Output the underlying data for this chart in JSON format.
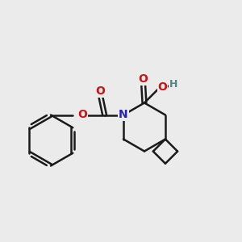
{
  "bg_color": "#ebebeb",
  "bond_color": "#1a1a1a",
  "N_color": "#2222bb",
  "O_color": "#cc1111",
  "H_color": "#4a8888",
  "linewidth": 1.8,
  "figsize": [
    3.0,
    3.0
  ],
  "dpi": 100,
  "xlim": [
    0,
    10
  ],
  "ylim": [
    0,
    10
  ]
}
